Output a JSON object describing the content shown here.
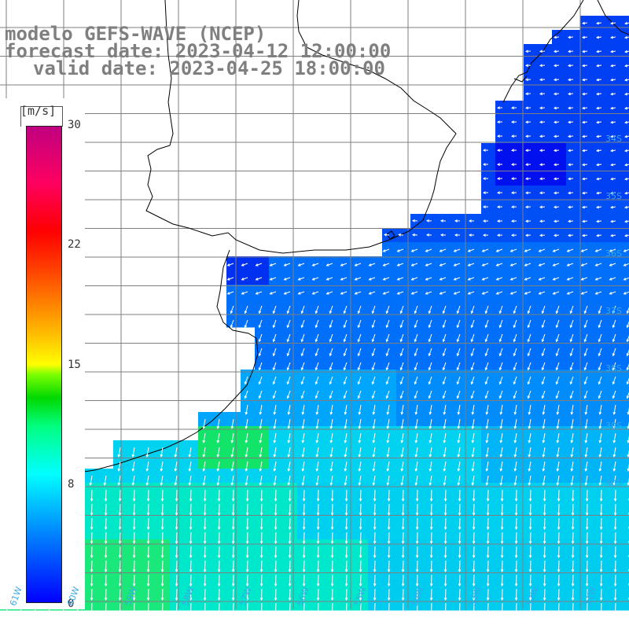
{
  "title": {
    "line1": "modelo GEFS-WAVE (NCEP)",
    "line2": "forecast date: 2023-04-12 12:00:00",
    "line3": "valid date: 2023-04-25 18:00:00"
  },
  "colorbar": {
    "unit": "[m/s]",
    "ticks": [
      "30",
      "22",
      "15",
      "8",
      "0"
    ],
    "colors": [
      "#0000ff",
      "#0080ff",
      "#00ffff",
      "#00ff80",
      "#00d800",
      "#ffff00",
      "#ff8000",
      "#ff0000",
      "#c00080"
    ]
  },
  "axes": {
    "lon_labels": [
      "61W",
      "60W",
      "59W",
      "58W",
      "57W",
      "56W",
      "55W",
      "54W",
      "53W",
      "52W",
      "51W"
    ],
    "lat_labels": [
      "34S",
      "35S",
      "36S",
      "37S",
      "38S",
      "39S",
      "40S"
    ]
  },
  "colors": {
    "title_text": "#7f7f7f",
    "coastline": "#000000",
    "grid": "#7f7f7f",
    "arrows": "#ffffff",
    "axis_label": "#3aa7e6"
  }
}
